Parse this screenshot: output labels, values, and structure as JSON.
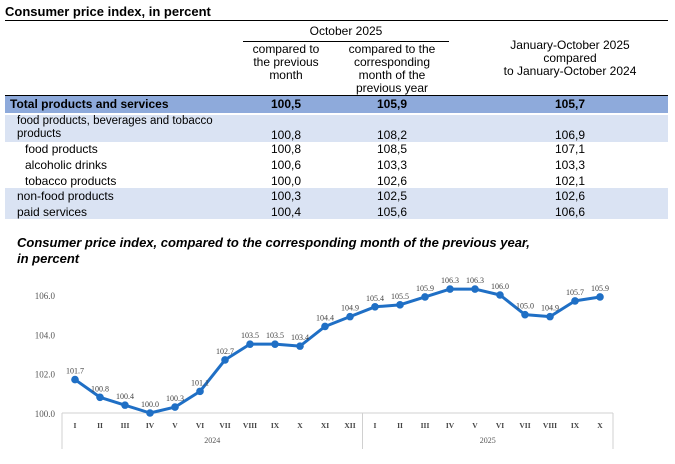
{
  "table": {
    "title": "Consumer price index, in percent",
    "period": "October 2025",
    "headers": [
      "compared to the previous month",
      "compared to the corresponding month of the previous year",
      "January-October 2025 compared to January-October 2024"
    ],
    "header_lines": {
      "h1": [
        "compared to",
        "the previous",
        "month"
      ],
      "h2": [
        "compared to the",
        "corresponding",
        "month of the",
        "previous year"
      ],
      "h3": [
        "January-October 2025",
        "compared",
        "to January-October 2024"
      ]
    },
    "rows": [
      {
        "label": "Total products and services",
        "values": [
          "100,5",
          "105,9",
          "105,7"
        ]
      },
      {
        "label": "food products, beverages and tobacco products",
        "label_lines": [
          "food products, beverages and tobacco",
          "products"
        ],
        "values": [
          "100,8",
          "108,2",
          "106,9"
        ]
      },
      {
        "label": "food products",
        "values": [
          "100,8",
          "108,5",
          "107,1"
        ]
      },
      {
        "label": "alcoholic drinks",
        "values": [
          "100,6",
          "103,3",
          "103,3"
        ]
      },
      {
        "label": "tobacco products",
        "values": [
          "100,0",
          "102,6",
          "102,1"
        ]
      },
      {
        "label": "non-food products",
        "values": [
          "100,3",
          "102,5",
          "102,6"
        ]
      },
      {
        "label": "paid services",
        "values": [
          "100,4",
          "105,6",
          "106,6"
        ]
      }
    ]
  },
  "chart_data": {
    "type": "line",
    "title": "Consumer price index, compared to the corresponding month of the previous year, in percent",
    "title_lines": [
      "Consumer price index, compared to the corresponding month of the previous year,",
      "in percent"
    ],
    "categories": [
      "I",
      "II",
      "III",
      "IV",
      "V",
      "VI",
      "VII",
      "VIII",
      "IX",
      "X",
      "XI",
      "XII",
      "I",
      "II",
      "III",
      "IV",
      "V",
      "VI",
      "VII",
      "VIII",
      "IX",
      "X"
    ],
    "groups": [
      {
        "label": "2024",
        "count": 12
      },
      {
        "label": "2025",
        "count": 10
      }
    ],
    "values": [
      101.7,
      100.8,
      100.4,
      100.0,
      100.3,
      101.1,
      102.7,
      103.5,
      103.5,
      103.4,
      104.4,
      104.9,
      105.4,
      105.5,
      105.9,
      106.3,
      106.3,
      106.0,
      105.0,
      104.9,
      105.7,
      105.9
    ],
    "yticks": [
      "100.0",
      "102.0",
      "104.0",
      "106.0"
    ],
    "ylim": [
      100,
      106
    ],
    "color": "#1f6fc5",
    "grid": false
  }
}
